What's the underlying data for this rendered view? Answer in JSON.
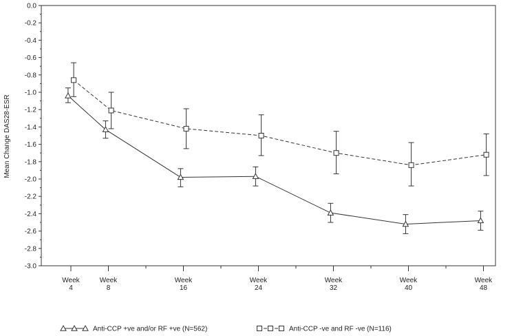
{
  "chart_data": {
    "type": "line",
    "ylabel": "Mean Change DAS28-ESR",
    "xlabel": "",
    "ylim": [
      -3.0,
      0.0
    ],
    "y_ticks": [
      "0.0",
      "-0.2",
      "-0.4",
      "-0.6",
      "-0.8",
      "-1.0",
      "-1.2",
      "-1.4",
      "-1.6",
      "-1.8",
      "-2.0",
      "-2.2",
      "-2.4",
      "-2.6",
      "-2.8",
      "-3.0"
    ],
    "x_weeks": [
      4,
      8,
      16,
      24,
      32,
      40,
      48
    ],
    "x_tick_lines": [
      [
        "Week",
        "4"
      ],
      [
        "Week",
        "8"
      ],
      [
        "Week",
        "16"
      ],
      [
        "Week",
        "24"
      ],
      [
        "Week",
        "32"
      ],
      [
        "Week",
        "40"
      ],
      [
        "Week",
        "48"
      ]
    ],
    "grid": false,
    "legend_position": "bottom",
    "series": [
      {
        "name": "Anti-CCP +ve and/or RF +ve (N=562)",
        "marker": "triangle",
        "line_style": "solid",
        "x_offset": -0.3,
        "values": [
          -1.04,
          -1.43,
          -1.98,
          -1.97,
          -2.39,
          -2.52,
          -2.48
        ],
        "err_low": [
          -1.12,
          -1.53,
          -2.09,
          -2.08,
          -2.5,
          -2.63,
          -2.59
        ],
        "err_high": [
          -0.95,
          -1.33,
          -1.88,
          -1.86,
          -2.28,
          -2.41,
          -2.37
        ]
      },
      {
        "name": "Anti-CCP -ve and RF -ve (N=116)",
        "marker": "square",
        "line_style": "dashed",
        "x_offset": 0.3,
        "values": [
          -0.86,
          -1.21,
          -1.42,
          -1.5,
          -1.7,
          -1.84,
          -1.72
        ],
        "err_low": [
          -1.05,
          -1.42,
          -1.65,
          -1.73,
          -1.94,
          -2.08,
          -1.96
        ],
        "err_high": [
          -0.66,
          -1.0,
          -1.19,
          -1.26,
          -1.45,
          -1.58,
          -1.48
        ]
      }
    ]
  }
}
